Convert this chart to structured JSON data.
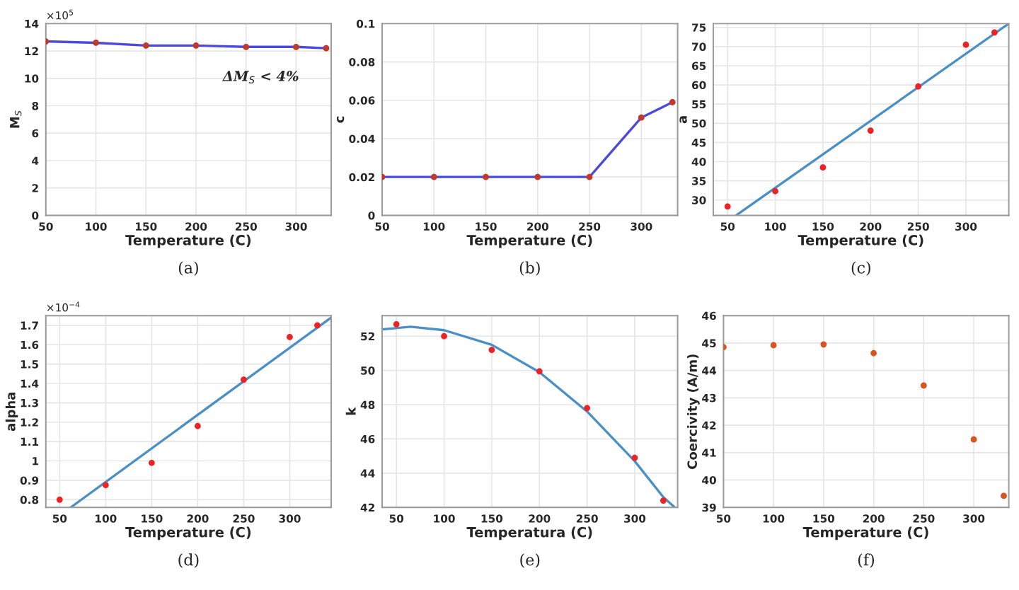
{
  "chart_data": [
    {
      "type": "line",
      "xlabel": "Temperature (C)",
      "ylabel": "M$_{S}$",
      "annotations": [
        "(a)",
        "×10$^{5}$",
        "ΔM$_{S}$ < 4%"
      ],
      "x": [
        50,
        100,
        150,
        200,
        250,
        300,
        330
      ],
      "xlim": [
        50,
        335
      ],
      "xticks": [
        50,
        100,
        150,
        200,
        250,
        300
      ],
      "ylim": [
        0,
        14
      ],
      "yticks": [
        0,
        2,
        4,
        6,
        8,
        10,
        12,
        14
      ],
      "grid": true,
      "series": [
        {
          "color": "#4a4ae0",
          "values": [
            12.7,
            12.6,
            12.4,
            12.4,
            12.3,
            12.3,
            12.2
          ]
        },
        {
          "type": "scatter",
          "color": "#c0392b",
          "values": [
            12.7,
            12.6,
            12.4,
            12.4,
            12.3,
            12.3,
            12.2
          ]
        }
      ]
    },
    {
      "type": "line",
      "xlabel": "Temperature (C)",
      "ylabel": "c",
      "annotations": [
        "(b)"
      ],
      "x": [
        50,
        100,
        150,
        200,
        250,
        300,
        330
      ],
      "xlim": [
        50,
        335
      ],
      "xticks": [
        50,
        100,
        150,
        200,
        250,
        300
      ],
      "ylim": [
        0,
        0.1
      ],
      "yticks": [
        0,
        0.02,
        0.04,
        0.06,
        0.08,
        0.1
      ],
      "grid": true,
      "series": [
        {
          "color": "#4a4ae0",
          "values": [
            0.02,
            0.02,
            0.02,
            0.02,
            0.02,
            0.051,
            0.059
          ]
        },
        {
          "type": "scatter",
          "color": "#c0392b",
          "values": [
            0.02,
            0.02,
            0.02,
            0.02,
            0.02,
            0.051,
            0.059
          ]
        }
      ]
    },
    {
      "type": "scatter",
      "xlabel": "Temperature (C)",
      "ylabel": "a",
      "annotations": [
        "(c)"
      ],
      "x": [
        50,
        100,
        150,
        200,
        250,
        300,
        330
      ],
      "xlim": [
        35,
        345
      ],
      "xticks": [
        50,
        100,
        150,
        200,
        250,
        300
      ],
      "ylim": [
        26,
        76
      ],
      "yticks": [
        30,
        35,
        40,
        45,
        50,
        55,
        60,
        65,
        70,
        75
      ],
      "grid": true,
      "series": [
        {
          "type": "line",
          "color": "#4a90c8",
          "x": [
            59,
            345
          ],
          "values": [
            26,
            76
          ]
        },
        {
          "color": "#ee2222",
          "values": [
            28.3,
            32.3,
            38.5,
            48.1,
            59.6,
            70.5,
            73.7
          ]
        }
      ]
    },
    {
      "type": "scatter",
      "xlabel": "Temperature (C)",
      "ylabel": "alpha",
      "annotations": [
        "(d)",
        "×10$^{−4}$"
      ],
      "x": [
        50,
        100,
        150,
        200,
        250,
        300,
        330
      ],
      "xlim": [
        35,
        345
      ],
      "xticks": [
        50,
        100,
        150,
        200,
        250,
        300
      ],
      "ylim": [
        0.76,
        1.75
      ],
      "yticks": [
        0.8,
        0.9,
        {
          "value": 1.0,
          "label": "1"
        },
        1.1,
        1.2,
        1.3,
        1.4,
        1.5,
        1.6,
        1.7
      ],
      "grid": true,
      "series": [
        {
          "type": "line",
          "color": "#4a90c8",
          "x": [
            62,
            345
          ],
          "values": [
            0.76,
            1.74
          ]
        },
        {
          "color": "#ee2222",
          "values": [
            0.8,
            0.875,
            0.99,
            1.18,
            1.42,
            1.64,
            1.7
          ]
        }
      ]
    },
    {
      "type": "scatter",
      "xlabel": "Temperatura (C)",
      "ylabel": "k",
      "annotations": [
        "(e)"
      ],
      "x": [
        50,
        100,
        150,
        200,
        250,
        300,
        330
      ],
      "xlim": [
        35,
        345
      ],
      "xticks": [
        50,
        100,
        150,
        200,
        250,
        300
      ],
      "ylim": [
        42,
        53.2
      ],
      "yticks": [
        42,
        44,
        46,
        48,
        50,
        52
      ],
      "grid": true,
      "series": [
        {
          "type": "line",
          "color": "#4a90c8",
          "x": [
            35,
            65,
            100,
            150,
            200,
            250,
            300,
            330,
            342
          ],
          "values": [
            52.4,
            52.55,
            52.35,
            51.5,
            49.9,
            47.6,
            44.7,
            42.6,
            42
          ]
        },
        {
          "color": "#ee2222",
          "values": [
            52.7,
            52.0,
            51.2,
            49.95,
            47.8,
            44.9,
            42.4
          ]
        }
      ]
    },
    {
      "type": "scatter",
      "xlabel": "Temperature (C)",
      "ylabel": "Coercivity (A/m)",
      "annotations": [
        "(f)"
      ],
      "x": [
        50,
        100,
        150,
        200,
        250,
        300,
        330
      ],
      "xlim": [
        50,
        335
      ],
      "xticks": [
        50,
        100,
        150,
        200,
        250,
        300
      ],
      "ylim": [
        39,
        46
      ],
      "yticks": [
        39,
        40,
        41,
        42,
        43,
        44,
        45,
        46
      ],
      "grid": true,
      "series": [
        {
          "color": "#d9531e",
          "values": [
            44.85,
            44.92,
            44.95,
            44.63,
            43.45,
            41.48,
            39.42
          ]
        }
      ]
    }
  ]
}
